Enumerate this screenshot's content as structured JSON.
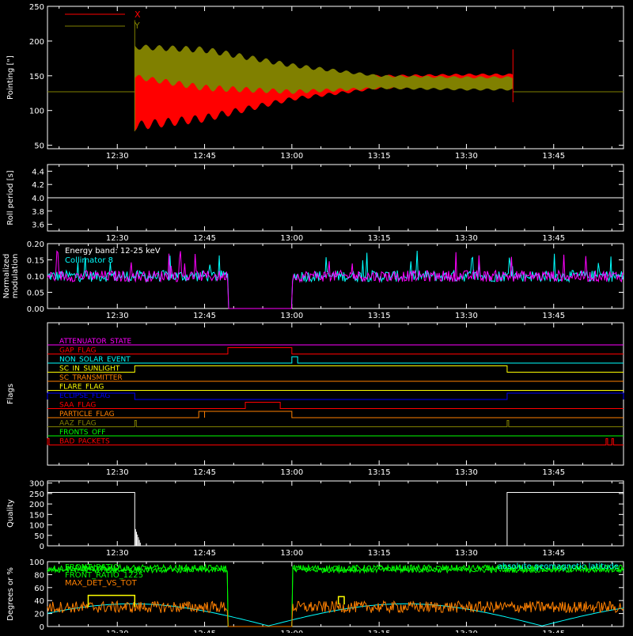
{
  "colors": {
    "background": "#000000",
    "axes": "#ffffff",
    "red": "#ff0000",
    "olive": "#808000",
    "magenta": "#ff00ff",
    "cyan": "#00ffff",
    "orange": "#ff8000",
    "yellow": "#ffff00",
    "blue": "#0000ff",
    "green": "#00ff00",
    "darkred": "#c00000",
    "gold": "#ffd700"
  },
  "time_ticks": [
    "12:30",
    "12:45",
    "13:00",
    "13:15",
    "13:30",
    "13:45"
  ],
  "chart_data": [
    {
      "type": "line",
      "panel": "pointing",
      "ylabel": "Pointing [\"]",
      "ylim": [
        45,
        250
      ],
      "yticks": [
        50,
        100,
        150,
        200,
        250
      ],
      "xlim": [
        "12:18",
        "13:57"
      ],
      "legend": {
        "placement": "top-left",
        "entries": [
          "X",
          "Y"
        ]
      },
      "series": [
        {
          "name": "X",
          "color": "#ff0000",
          "x": [
            "12:18",
            "12:33",
            "12:45",
            "13:00",
            "13:15",
            "13:30",
            "13:38",
            "13:57"
          ],
          "mid": [
            127,
            118,
            123,
            134,
            141,
            143,
            143,
            127
          ],
          "amplitude": [
            0,
            47,
            40,
            20,
            10,
            10,
            10,
            0
          ]
        },
        {
          "name": "Y",
          "color": "#808000",
          "x": [
            "12:18",
            "12:33",
            "12:45",
            "13:00",
            "13:15",
            "13:30",
            "13:38",
            "13:57"
          ],
          "mid": [
            127,
            170,
            160,
            146,
            141,
            139,
            139,
            127
          ],
          "amplitude": [
            0,
            25,
            32,
            22,
            10,
            10,
            10,
            0
          ]
        }
      ]
    },
    {
      "type": "line",
      "panel": "roll",
      "ylabel": "Roll period [s]",
      "ylim": [
        3.5,
        4.5
      ],
      "yticks": [
        "3.6",
        "3.8",
        "4.0",
        "4.2",
        "4.4"
      ],
      "series": [
        {
          "color": "#ffffff",
          "x": [
            "12:18",
            "13:57"
          ],
          "y": [
            4.0,
            4.0
          ]
        }
      ]
    },
    {
      "type": "line",
      "panel": "modulation",
      "ylabel": "Normalized modulation",
      "ylim": [
        0,
        0.2
      ],
      "yticks": [
        "0.00",
        "0.05",
        "0.10",
        "0.15",
        "0.20"
      ],
      "annotations": [
        "Energy band: 12-25 keV",
        "Collimator 8"
      ],
      "series": [
        {
          "name": "Collimator 8",
          "color": "#00ffff",
          "baseline": 0.1
        },
        {
          "color": "#ff00ff",
          "baseline": 0.1,
          "gaps": [
            [
              "12:49",
              "13:00"
            ]
          ]
        }
      ]
    },
    {
      "type": "line",
      "panel": "flags",
      "ylabel": "Flags",
      "flags": [
        {
          "label": "ATTENUATOR_STATE",
          "color": "#ff00ff",
          "on": []
        },
        {
          "label": "GAP_FLAG",
          "color": "#ff0000",
          "on": [
            [
              "12:49",
              "13:00"
            ]
          ]
        },
        {
          "label": "NON_SOLAR_EVENT",
          "color": "#00ffff",
          "on": [
            [
              "13:00",
              "13:01"
            ]
          ]
        },
        {
          "label": "SC_IN_SUNLIGHT",
          "color": "#ffff00",
          "on": [
            [
              "12:33",
              "13:37"
            ]
          ]
        },
        {
          "label": "SC_TRANSMITTER",
          "color": "#ff8000",
          "on": []
        },
        {
          "label": "FLARE_FLAG",
          "color": "#ffff00",
          "on": []
        },
        {
          "label": "ECLIPSE_FLAG",
          "color": "#0000ff",
          "on": [
            [
              "12:18",
              "12:33"
            ],
            [
              "13:37",
              "13:57"
            ]
          ]
        },
        {
          "label": "SAA_FLAG",
          "color": "#ff0000",
          "on": [
            [
              "12:52",
              "12:58"
            ]
          ]
        },
        {
          "label": "PARTICLE_FLAG",
          "color": "#ff8000",
          "on": [
            [
              "12:44",
              "12:45"
            ],
            [
              "12:45",
              "13:00"
            ]
          ]
        },
        {
          "label": "AAZ_FLAG",
          "color": "#808000",
          "on": [
            [
              "12:33",
              "12:33"
            ],
            [
              "13:37",
              "13:37"
            ]
          ]
        },
        {
          "label": "FRONTS_OFF",
          "color": "#00ff00",
          "on": []
        },
        {
          "label": "BAD_PACKETS",
          "color": "#ff0000",
          "on": [
            [
              "12:18",
              "12:18"
            ],
            [
              "13:54",
              "13:54"
            ],
            [
              "13:55",
              "13:55"
            ]
          ]
        }
      ]
    },
    {
      "type": "line",
      "panel": "quality",
      "ylabel": "Quality",
      "ylim": [
        0,
        310
      ],
      "yticks": [
        0,
        50,
        100,
        150,
        200,
        250,
        300
      ],
      "series": [
        {
          "color": "#ffffff",
          "x": [
            "12:18",
            "12:33",
            "12:33",
            "12:35",
            "13:37",
            "13:37",
            "13:57"
          ],
          "y": [
            255,
            255,
            0,
            0,
            0,
            255,
            255
          ]
        }
      ]
    },
    {
      "type": "line",
      "panel": "degrees",
      "ylabel": "Degrees or %",
      "ylim": [
        0,
        100
      ],
      "yticks": [
        0,
        20,
        40,
        60,
        80,
        100
      ],
      "legend": {
        "placement": "top-left",
        "entries": [
          "FRONT_RATIO",
          "FRONT_RATIO_1225",
          "MAX_DET_VS_TOT"
        ]
      },
      "annotation": "absolute geomagnetic latitude",
      "series": [
        {
          "name": "FRONT_RATIO",
          "color": "#00ff00",
          "baseline": 90,
          "gaps": [
            [
              "12:49",
              "13:00"
            ]
          ]
        },
        {
          "name": "FRONT_RATIO_1225",
          "color": "#00ff00",
          "baseline": 88,
          "gaps": [
            [
              "12:49",
              "13:00"
            ]
          ]
        },
        {
          "name": "MAX_DET_VS_TOT",
          "color": "#ff8000",
          "baseline": 30,
          "gaps": [
            [
              "12:49",
              "13:00"
            ]
          ]
        },
        {
          "name": "absolute geomagnetic latitude",
          "color": "#00ffff"
        },
        {
          "color": "#ffff00",
          "x": [
            "12:25",
            "12:33"
          ],
          "y": [
            48,
            48
          ]
        }
      ]
    }
  ]
}
